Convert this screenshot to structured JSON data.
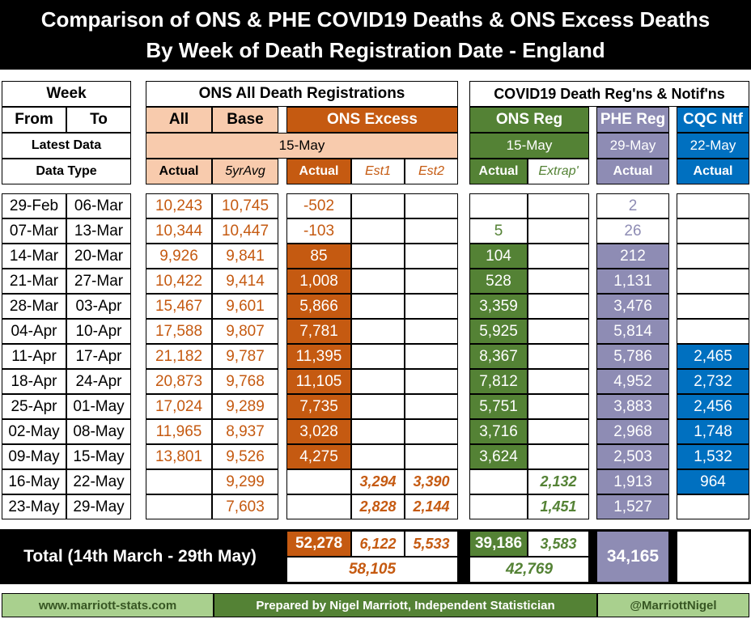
{
  "title": {
    "line1": "Comparison of ONS & PHE COVID19 Deaths & ONS Excess Deaths",
    "line2": "By Week of Death Registration Date - England"
  },
  "headers": {
    "week": "Week",
    "from": "From",
    "to": "To",
    "latest_data": "Latest Data",
    "data_type": "Data Type",
    "ons_all": "ONS All Death Registrations",
    "all": "All",
    "base": "Base",
    "ons_excess": "ONS Excess",
    "ons_date": "15-May",
    "actual": "Actual",
    "fiveyr": "5yrAvg",
    "est1": "Est1",
    "est2": "Est2",
    "covid_group": "COVID19 Death Reg'ns & Notif'ns",
    "ons_reg": "ONS Reg",
    "ons_reg_date": "15-May",
    "extrap": "Extrap'",
    "phe_reg": "PHE Reg",
    "phe_date": "29-May",
    "cqc_ntf": "CQC Ntf",
    "cqc_date": "22-May"
  },
  "chart_data": {
    "type": "table",
    "title": "Comparison of ONS & PHE COVID19 Deaths & ONS Excess Deaths By Week of Death Registration Date - England",
    "columns": [
      "From",
      "To",
      "ONS All Actual",
      "Base 5yrAvg",
      "ONS Excess Actual",
      "Excess Est1",
      "Excess Est2",
      "ONS Reg Actual",
      "ONS Reg Extrap'",
      "PHE Reg Actual",
      "CQC Ntf Actual"
    ],
    "rows": [
      [
        "29-Feb",
        "06-Mar",
        "10,243",
        "10,745",
        "-502",
        "",
        "",
        "",
        "",
        "2",
        ""
      ],
      [
        "07-Mar",
        "13-Mar",
        "10,344",
        "10,447",
        "-103",
        "",
        "",
        "5",
        "",
        "26",
        ""
      ],
      [
        "14-Mar",
        "20-Mar",
        "9,926",
        "9,841",
        "85",
        "",
        "",
        "104",
        "",
        "212",
        ""
      ],
      [
        "21-Mar",
        "27-Mar",
        "10,422",
        "9,414",
        "1,008",
        "",
        "",
        "528",
        "",
        "1,131",
        ""
      ],
      [
        "28-Mar",
        "03-Apr",
        "15,467",
        "9,601",
        "5,866",
        "",
        "",
        "3,359",
        "",
        "3,476",
        ""
      ],
      [
        "04-Apr",
        "10-Apr",
        "17,588",
        "9,807",
        "7,781",
        "",
        "",
        "5,925",
        "",
        "5,814",
        ""
      ],
      [
        "11-Apr",
        "17-Apr",
        "21,182",
        "9,787",
        "11,395",
        "",
        "",
        "8,367",
        "",
        "5,786",
        "2,465"
      ],
      [
        "18-Apr",
        "24-Apr",
        "20,873",
        "9,768",
        "11,105",
        "",
        "",
        "7,812",
        "",
        "4,952",
        "2,732"
      ],
      [
        "25-Apr",
        "01-May",
        "17,024",
        "9,289",
        "7,735",
        "",
        "",
        "5,751",
        "",
        "3,883",
        "2,456"
      ],
      [
        "02-May",
        "08-May",
        "11,965",
        "8,937",
        "3,028",
        "",
        "",
        "3,716",
        "",
        "2,968",
        "1,748"
      ],
      [
        "09-May",
        "15-May",
        "13,801",
        "9,526",
        "4,275",
        "",
        "",
        "3,624",
        "",
        "2,503",
        "1,532"
      ],
      [
        "16-May",
        "22-May",
        "",
        "9,299",
        "",
        "3,294",
        "3,390",
        "",
        "2,132",
        "1,913",
        "964"
      ],
      [
        "23-May",
        "29-May",
        "",
        "7,603",
        "",
        "2,828",
        "2,144",
        "",
        "1,451",
        "1,527",
        ""
      ]
    ],
    "total": {
      "label": "Total (14th March - 29th May)",
      "excess_actual": "52,278",
      "est1": "6,122",
      "est2": "5,533",
      "excess_sum": "58,105",
      "ons_reg_actual": "39,186",
      "ons_reg_extrap": "3,583",
      "ons_reg_sum": "42,769",
      "phe_reg": "34,165"
    }
  },
  "footer": {
    "website": "www.marriott-stats.com",
    "prepared": "Prepared by Nigel Marriott, Independent Statistician",
    "twitter": "@MarriottNigel"
  },
  "colors": {
    "peach": "#F8CBAD",
    "orange": "#C55A11",
    "green": "#548235",
    "dark_green": "#375623",
    "lavender": "#8E8CB4",
    "blue": "#0070C0",
    "light_green": "#A9D08E"
  }
}
